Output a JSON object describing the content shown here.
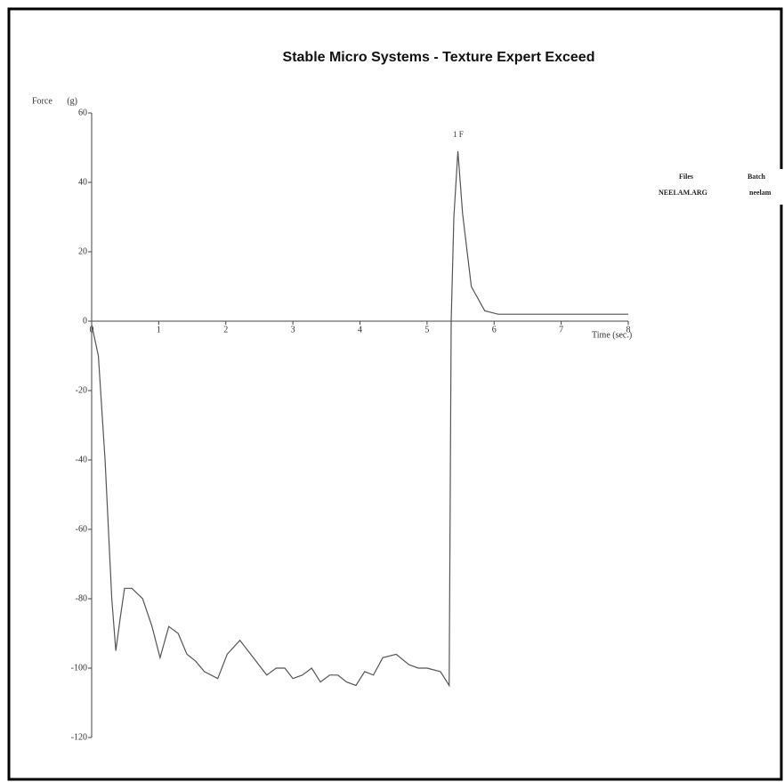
{
  "chart_data": {
    "type": "line",
    "title": "Stable Micro Systems - Texture Expert Exceed",
    "y_label": "Force (g)",
    "x_label": "Time (sec.)",
    "annotation": "1 F",
    "info_header": [
      "Files",
      "Batch"
    ],
    "info_row": [
      "NEELAM.ARG",
      "neelam"
    ],
    "x": [
      0,
      0.1,
      0.2,
      0.3,
      0.36,
      0.43,
      0.49,
      0.6,
      0.76,
      0.9,
      1.02,
      1.15,
      1.29,
      1.42,
      1.55,
      1.68,
      1.88,
      2.02,
      2.21,
      2.41,
      2.61,
      2.75,
      2.88,
      3.0,
      3.14,
      3.28,
      3.41,
      3.55,
      3.67,
      3.8,
      3.94,
      4.07,
      4.2,
      4.34,
      4.54,
      4.73,
      4.87,
      5.0,
      5.2,
      5.33,
      5.36,
      5.4,
      5.46,
      5.53,
      5.66,
      5.86,
      6.06,
      6.5,
      7.0,
      7.5,
      8.0
    ],
    "series": [
      {
        "color": "#555555",
        "values": [
          -1,
          -10,
          -40,
          -80,
          -95,
          -85,
          -77,
          -77,
          -80,
          -88,
          -97,
          -88,
          -90,
          -96,
          -98,
          -101,
          -103,
          -96,
          -92,
          -97,
          -102,
          -100,
          -100,
          -103,
          -102,
          -100,
          -104,
          -102,
          -102,
          -104,
          -105,
          -101,
          -102,
          -97,
          -96,
          -99,
          -100,
          -100,
          -101,
          -105,
          0,
          30,
          49,
          31,
          10,
          3,
          2,
          2,
          2,
          2,
          2
        ]
      }
    ],
    "xlim": [
      0,
      8
    ],
    "xticks": [
      0,
      1,
      2,
      3,
      4,
      5,
      6,
      7,
      8
    ],
    "ylim": [
      -120,
      60
    ],
    "yticks": [
      60,
      40,
      20,
      0,
      -20,
      -40,
      -60,
      -80,
      -100,
      -120
    ]
  }
}
